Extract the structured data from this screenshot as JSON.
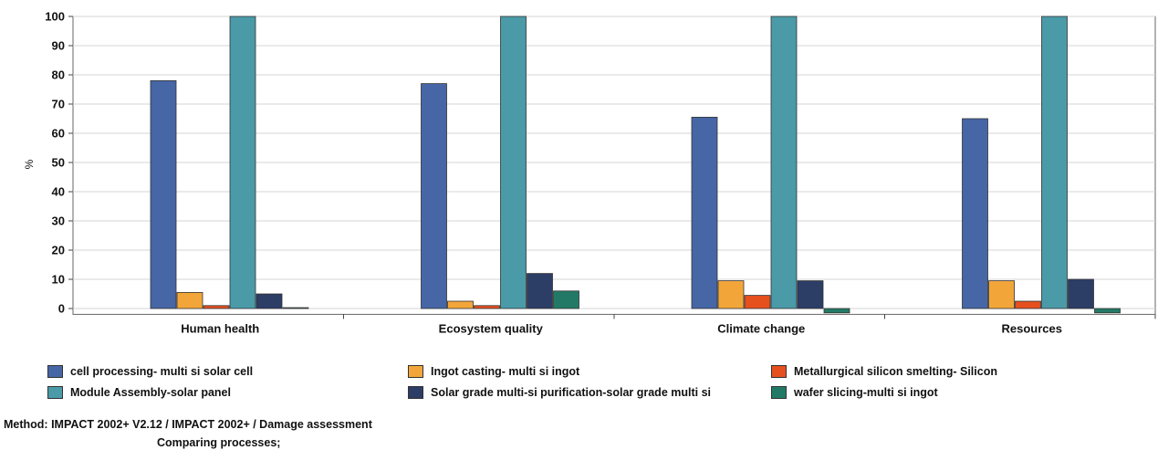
{
  "chart_data": {
    "type": "bar",
    "ylabel": "%",
    "ylim": [
      -2,
      100
    ],
    "yticks": [
      "100",
      "90",
      "80",
      "70",
      "60",
      "50",
      "40",
      "30",
      "20",
      "10",
      "0"
    ],
    "grid": true,
    "legend_position": "bottom",
    "categories": [
      "Human health",
      "Ecosystem quality",
      "Climate change",
      "Resources"
    ],
    "series": [
      {
        "name": "cell processing- multi si solar cell",
        "color": "#4666a6",
        "values": [
          78,
          77,
          65.5,
          65
        ]
      },
      {
        "name": "Ingot casting- multi si ingot",
        "color": "#f2a63a",
        "values": [
          5.5,
          2.5,
          9.5,
          9.5
        ]
      },
      {
        "name": "Metallurgical silicon smelting- Silicon",
        "color": "#e6501e",
        "values": [
          1,
          1,
          4.5,
          2.5
        ]
      },
      {
        "name": "Module Assembly-solar panel",
        "color": "#4a9aa8",
        "values": [
          100,
          100,
          100,
          100
        ]
      },
      {
        "name": "Solar grade multi-si purification-solar grade multi si",
        "color": "#2c3d66",
        "values": [
          5,
          12,
          9.5,
          10
        ]
      },
      {
        "name": "wafer slicing-multi si ingot",
        "color": "#227a66",
        "values": [
          0.3,
          6,
          -1.5,
          -1.5
        ]
      }
    ]
  },
  "footer": {
    "method": "Method: IMPACT 2002+ V2.12 / IMPACT 2002+ / Damage assessment",
    "comparing": "Comparing processes;"
  }
}
